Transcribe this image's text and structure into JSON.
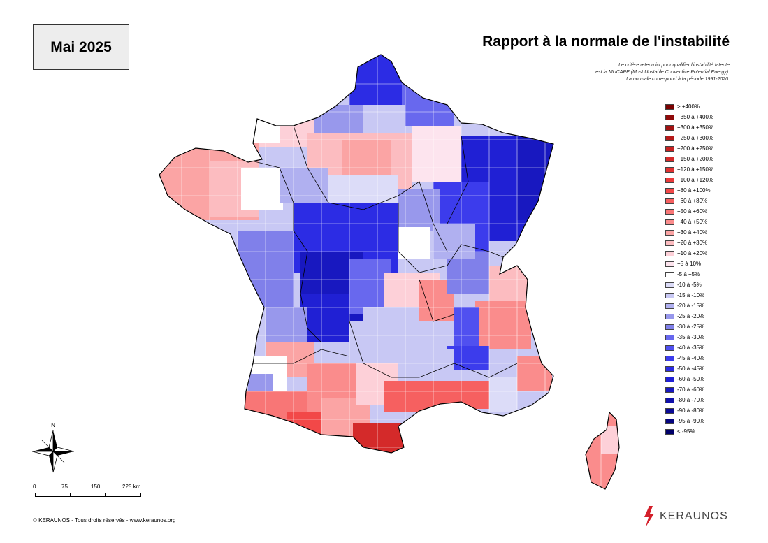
{
  "date_label": "Mai 2025",
  "title": "Rapport à la normale de l'instabilité",
  "note_lines": [
    "Le critère retenu ici pour qualifier l'instabilité latente",
    "est la MUCAPE (Most Unstable Convective Potential Energy).",
    "La normale correspond à la période 1991-2020."
  ],
  "legend": [
    {
      "label": "> +400%",
      "color": "#7a0000"
    },
    {
      "label": "+350 à +400%",
      "color": "#8f0a0a"
    },
    {
      "label": "+300 à +350%",
      "color": "#a11212"
    },
    {
      "label": "+250 à +300%",
      "color": "#b51a1a"
    },
    {
      "label": "+200 à +250%",
      "color": "#c62222"
    },
    {
      "label": "+150 à +200%",
      "color": "#d42a2a"
    },
    {
      "label": "+120 à +150%",
      "color": "#e03232"
    },
    {
      "label": "+100 à +120%",
      "color": "#ea3a3a"
    },
    {
      "label": "+80 à +100%",
      "color": "#f24848"
    },
    {
      "label": "+60 à +80%",
      "color": "#f66060"
    },
    {
      "label": "+50 à +60%",
      "color": "#f87676"
    },
    {
      "label": "+40 à +50%",
      "color": "#fa8c8c"
    },
    {
      "label": "+30 à +40%",
      "color": "#fba4a4"
    },
    {
      "label": "+20 à +30%",
      "color": "#fcbcc0"
    },
    {
      "label": "+10 à +20%",
      "color": "#fdd0d8"
    },
    {
      "label": "+5 à 10%",
      "color": "#fde4ee"
    },
    {
      "label": "-5 à +5%",
      "color": "#ffffff"
    },
    {
      "label": "-10 à -5%",
      "color": "#dcdcf8"
    },
    {
      "label": "-15 à -10%",
      "color": "#c8c8f4"
    },
    {
      "label": "-20 à -15%",
      "color": "#b0b0f0"
    },
    {
      "label": "-25 à -20%",
      "color": "#9898ec"
    },
    {
      "label": "-30 à -25%",
      "color": "#8080ea"
    },
    {
      "label": "-35 à -30%",
      "color": "#6868ee"
    },
    {
      "label": "-40 à -35%",
      "color": "#5050f0"
    },
    {
      "label": "-45 à -40%",
      "color": "#3c3cec"
    },
    {
      "label": "-50 à -45%",
      "color": "#2c2ce4"
    },
    {
      "label": "-60 à -50%",
      "color": "#2020d4"
    },
    {
      "label": "-70 à -60%",
      "color": "#1818c0"
    },
    {
      "label": "-80 à -70%",
      "color": "#1010aa"
    },
    {
      "label": "-90 à -80%",
      "color": "#0a0a96"
    },
    {
      "label": "-95 à -90%",
      "color": "#050580"
    },
    {
      "label": "< -95%",
      "color": "#00006a"
    }
  ],
  "compass_label": "N",
  "scale_labels": [
    "0",
    "75",
    "150",
    "225 km"
  ],
  "copyright": "© KERAUNOS - Tous droits réservés - www.keraunos.org",
  "logo_text": "KERAUNOS"
}
